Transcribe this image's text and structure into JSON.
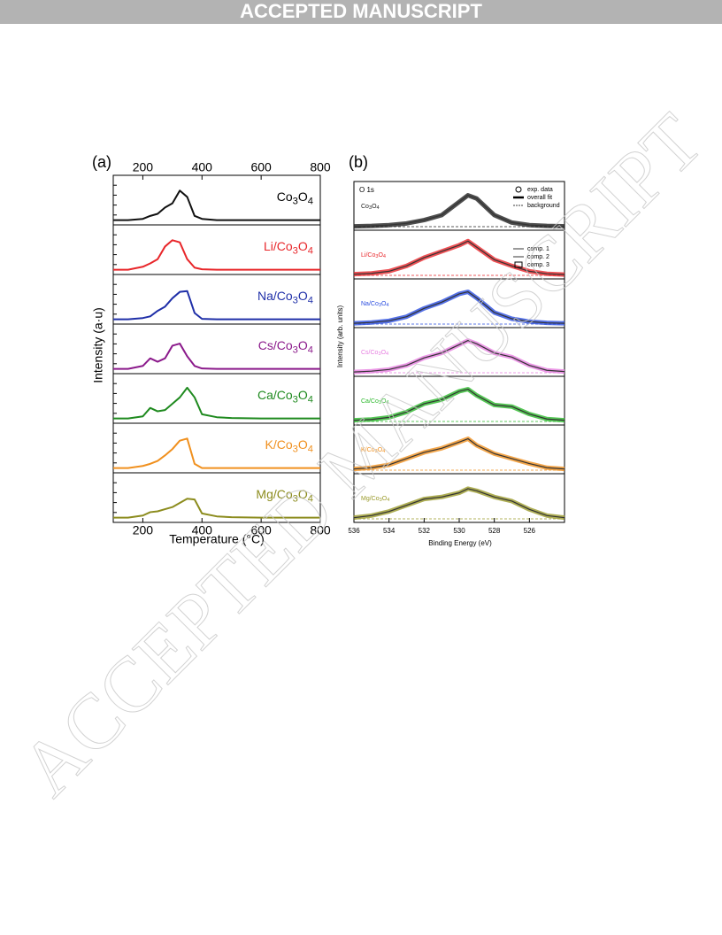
{
  "header": "ACCEPTED MANUSCRIPT",
  "watermark": "ACCEPTED MANUSCRIPT",
  "chart_data": [
    {
      "type": "line",
      "panel": "(a)",
      "xlabel": "Temperature (°C)",
      "ylabel": "Intensity (a·u)",
      "xlim": [
        100,
        800
      ],
      "xticks": [
        200,
        400,
        600,
        800
      ],
      "ylim": [
        0,
        1
      ],
      "x": [
        100,
        150,
        200,
        225,
        250,
        275,
        300,
        325,
        350,
        375,
        400,
        450,
        500,
        600,
        700,
        800
      ],
      "series": [
        {
          "name": "Co3O4",
          "color": "#111111",
          "values": [
            0.05,
            0.05,
            0.08,
            0.15,
            0.2,
            0.35,
            0.45,
            0.75,
            0.6,
            0.15,
            0.08,
            0.05,
            0.05,
            0.05,
            0.05,
            0.05
          ]
        },
        {
          "name": "Li/Co3O4",
          "color": "#e8262a",
          "values": [
            0.05,
            0.05,
            0.12,
            0.2,
            0.3,
            0.6,
            0.75,
            0.7,
            0.3,
            0.1,
            0.06,
            0.05,
            0.05,
            0.05,
            0.05,
            0.05
          ]
        },
        {
          "name": "Na/Co3O4",
          "color": "#1f2fa8",
          "values": [
            0.05,
            0.05,
            0.08,
            0.12,
            0.25,
            0.35,
            0.55,
            0.7,
            0.72,
            0.2,
            0.06,
            0.05,
            0.05,
            0.05,
            0.05,
            0.05
          ]
        },
        {
          "name": "Cs/Co3O4",
          "color": "#8b1a8b",
          "values": [
            0.05,
            0.05,
            0.12,
            0.3,
            0.22,
            0.3,
            0.6,
            0.65,
            0.35,
            0.12,
            0.06,
            0.05,
            0.05,
            0.05,
            0.05,
            0.05
          ]
        },
        {
          "name": "Ca/Co3O4",
          "color": "#1f8a1f",
          "values": [
            0.05,
            0.05,
            0.1,
            0.3,
            0.22,
            0.25,
            0.4,
            0.55,
            0.78,
            0.55,
            0.15,
            0.08,
            0.06,
            0.05,
            0.05,
            0.05
          ]
        },
        {
          "name": "K/Co3O4",
          "color": "#f0901e",
          "values": [
            0.05,
            0.05,
            0.1,
            0.15,
            0.22,
            0.35,
            0.5,
            0.7,
            0.75,
            0.15,
            0.05,
            0.05,
            0.05,
            0.05,
            0.05,
            0.05
          ]
        },
        {
          "name": "Mg/Co3O4",
          "color": "#8c8c1e",
          "values": [
            0.05,
            0.05,
            0.1,
            0.18,
            0.2,
            0.25,
            0.3,
            0.4,
            0.5,
            0.48,
            0.15,
            0.08,
            0.06,
            0.05,
            0.05,
            0.05
          ]
        }
      ]
    },
    {
      "type": "line",
      "panel": "(b)",
      "xlabel": "Binding Energy (eV)",
      "ylabel": "Intensity (arb. units)",
      "annotation": "O 1s",
      "legend": [
        "exp. data",
        "overall fit",
        "background",
        "comp. 1",
        "comp. 2",
        "comp. 3"
      ],
      "xlim": [
        536,
        524
      ],
      "xticks": [
        536,
        534,
        532,
        530,
        528,
        526
      ],
      "ylim": [
        0,
        1
      ],
      "x": [
        536,
        535,
        534,
        533,
        532,
        531,
        530,
        529.5,
        529,
        528,
        527,
        526,
        525,
        524
      ],
      "series": [
        {
          "name": "Co3O4",
          "color": "#222222",
          "values": [
            0.03,
            0.04,
            0.06,
            0.1,
            0.18,
            0.3,
            0.62,
            0.78,
            0.7,
            0.3,
            0.12,
            0.06,
            0.04,
            0.03
          ]
        },
        {
          "name": "Li/Co3O4",
          "color": "#e8262a",
          "values": [
            0.05,
            0.07,
            0.12,
            0.25,
            0.45,
            0.6,
            0.75,
            0.85,
            0.7,
            0.4,
            0.25,
            0.12,
            0.06,
            0.04
          ]
        },
        {
          "name": "Na/Co3O4",
          "color": "#2a4de0",
          "values": [
            0.04,
            0.06,
            0.1,
            0.2,
            0.4,
            0.55,
            0.75,
            0.8,
            0.65,
            0.3,
            0.15,
            0.08,
            0.05,
            0.04
          ]
        },
        {
          "name": "Cs/Co3O4",
          "color": "#e67ee0",
          "values": [
            0.04,
            0.06,
            0.1,
            0.2,
            0.38,
            0.5,
            0.7,
            0.8,
            0.72,
            0.5,
            0.4,
            0.2,
            0.08,
            0.05
          ]
        },
        {
          "name": "Ca/Co3O4",
          "color": "#2bb82b",
          "values": [
            0.05,
            0.07,
            0.12,
            0.25,
            0.45,
            0.55,
            0.75,
            0.8,
            0.65,
            0.42,
            0.38,
            0.2,
            0.08,
            0.05
          ]
        },
        {
          "name": "K/Co3O4",
          "color": "#f0901e",
          "values": [
            0.05,
            0.08,
            0.15,
            0.3,
            0.45,
            0.55,
            0.7,
            0.78,
            0.62,
            0.42,
            0.3,
            0.18,
            0.08,
            0.05
          ]
        },
        {
          "name": "Mg/Co3O4",
          "color": "#9a9a2a",
          "values": [
            0.05,
            0.1,
            0.2,
            0.35,
            0.5,
            0.55,
            0.65,
            0.75,
            0.7,
            0.55,
            0.45,
            0.25,
            0.1,
            0.05
          ]
        }
      ]
    }
  ]
}
